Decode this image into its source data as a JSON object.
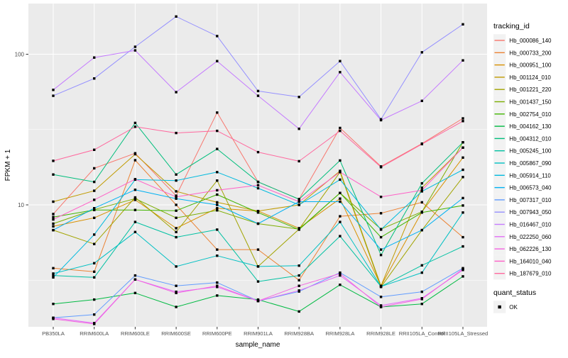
{
  "chart_data": {
    "type": "line",
    "title": "",
    "xlabel": "sample_name",
    "ylabel": "FPKM + 1",
    "grid": true,
    "legend_position": "right",
    "point_shape": "filled-square",
    "point_color": "#000000",
    "y_axis": {
      "scale": "log10",
      "ticks": [
        {
          "label": "100",
          "value": 100
        },
        {
          "label": "10",
          "value": 10
        }
      ],
      "minor_values": [
        31.623,
        3.1623
      ],
      "range": [
        1.55,
        218
      ]
    },
    "categories": [
      "PB350LA",
      "RRIM600LA",
      "RRIM600LE",
      "RRIM600SE",
      "RRIM600PE",
      "RRIM901LA",
      "RRIM928BA",
      "RRIM928LA",
      "RRIM928LE",
      "RRII105LA_Control",
      "RRII105LA_Stressed"
    ],
    "series": [
      {
        "name": "Hb_000086_140",
        "color": "#F8766D",
        "values": [
          8.7,
          17.5,
          22.0,
          11.5,
          41.0,
          14.2,
          10.9,
          32.4,
          18.0,
          25.5,
          37.5
        ]
      },
      {
        "name": "Hb_000733_200",
        "color": "#EB8335",
        "values": [
          3.8,
          3.6,
          19.8,
          10.0,
          5.05,
          5.05,
          3.16,
          8.4,
          8.8,
          10.4,
          6.1
        ]
      },
      {
        "name": "Hb_000951_100",
        "color": "#D89000",
        "values": [
          7.2,
          8.2,
          10.8,
          7.0,
          9.5,
          9.1,
          7.0,
          11.0,
          2.9,
          9.0,
          20.6
        ]
      },
      {
        "name": "Hb_001124_010",
        "color": "#C09B00",
        "values": [
          10.5,
          12.4,
          21.7,
          12.3,
          10.4,
          9.1,
          10.0,
          16.8,
          2.9,
          13.0,
          24.0
        ]
      },
      {
        "name": "Hb_001221_220",
        "color": "#A2A400",
        "values": [
          6.8,
          5.5,
          11.2,
          6.6,
          14.5,
          3.9,
          6.9,
          16.5,
          2.85,
          6.8,
          15.3
        ]
      },
      {
        "name": "Hb_001437_150",
        "color": "#7CAE00",
        "values": [
          7.5,
          9.3,
          11.0,
          8.2,
          9.2,
          7.5,
          6.9,
          12.0,
          6.9,
          9.0,
          26.0
        ]
      },
      {
        "name": "Hb_002754_010",
        "color": "#42B500",
        "values": [
          8.3,
          9.25,
          9.25,
          9.15,
          11.7,
          8.9,
          6.85,
          12.0,
          6.1,
          8.9,
          9.9
        ]
      },
      {
        "name": "Hb_004162_130",
        "color": "#00BA42",
        "values": [
          2.2,
          2.35,
          2.6,
          2.1,
          2.5,
          2.35,
          1.96,
          2.95,
          2.1,
          2.2,
          3.35
        ]
      },
      {
        "name": "Hb_004312_010",
        "color": "#00BE7C",
        "values": [
          15.9,
          14.2,
          35.0,
          15.9,
          23.5,
          14.2,
          10.9,
          19.7,
          4.65,
          13.9,
          26.0
        ]
      },
      {
        "name": "Hb_005245_100",
        "color": "#00C1A2",
        "values": [
          3.4,
          3.3,
          7.7,
          6.1,
          6.85,
          3.1,
          3.4,
          6.2,
          2.87,
          3.97,
          5.3
        ]
      },
      {
        "name": "Hb_005867_090",
        "color": "#00C0C3",
        "values": [
          3.5,
          4.1,
          6.6,
          3.9,
          4.6,
          3.9,
          3.95,
          7.7,
          2.87,
          3.55,
          8.9
        ]
      },
      {
        "name": "Hb_005914_110",
        "color": "#00BADE",
        "values": [
          3.3,
          6.35,
          14.7,
          14.5,
          16.5,
          12.9,
          10.0,
          14.7,
          6.85,
          12.3,
          17.1
        ]
      },
      {
        "name": "Hb_006573_040",
        "color": "#00B1F2",
        "values": [
          6.8,
          9.5,
          12.6,
          11.0,
          10.0,
          7.5,
          10.5,
          10.5,
          5.05,
          6.8,
          11.1
        ]
      },
      {
        "name": "Hb_007317_010",
        "color": "#619CFF",
        "values": [
          1.78,
          1.87,
          3.4,
          2.9,
          3.05,
          2.3,
          2.66,
          3.55,
          2.45,
          2.65,
          3.8
        ]
      },
      {
        "name": "Hb_007943_050",
        "color": "#9590FF",
        "values": [
          53.0,
          69.0,
          112.0,
          178.0,
          132.0,
          57.0,
          52.0,
          90.0,
          37.0,
          103.0,
          158.0
        ]
      },
      {
        "name": "Hb_016467_010",
        "color": "#C57BFF",
        "values": [
          58.0,
          95.0,
          106.0,
          56.0,
          90.0,
          53.0,
          32.0,
          76.0,
          36.5,
          49.0,
          91.0
        ]
      },
      {
        "name": "Hb_022250_060",
        "color": "#E26EF7",
        "values": [
          1.78,
          1.64,
          3.2,
          2.65,
          2.85,
          2.3,
          2.7,
          3.4,
          2.15,
          2.4,
          3.7
        ]
      },
      {
        "name": "Hb_062226_130",
        "color": "#F464E1",
        "values": [
          1.75,
          1.62,
          3.2,
          2.6,
          2.9,
          2.3,
          2.9,
          3.5,
          2.1,
          2.37,
          3.75
        ]
      },
      {
        "name": "Hb_164010_040",
        "color": "#FF61C7",
        "values": [
          8.0,
          10.8,
          14.8,
          11.3,
          12.5,
          13.5,
          10.5,
          16.5,
          11.3,
          12.5,
          24.0
        ]
      },
      {
        "name": "Hb_187679_010",
        "color": "#FF689E",
        "values": [
          19.6,
          23.2,
          33.0,
          30.0,
          31.0,
          22.4,
          19.5,
          31.0,
          17.8,
          25.3,
          36.0
        ]
      }
    ]
  },
  "legend": {
    "tracking_title": "tracking_id",
    "quant_title": "quant_status",
    "quant_items": [
      {
        "label": "OK",
        "marker": "square",
        "color": "#000000"
      }
    ]
  },
  "colors": {
    "page_bg": "#FFFFFF",
    "panel_bg": "#EBEBEB",
    "grid": "#FFFFFF",
    "tick_mark": "#333333",
    "axis_text": "#4D4D4D",
    "title_text": "#000000",
    "legend_key_bg": "#F2F2F2",
    "point": "#000000"
  }
}
